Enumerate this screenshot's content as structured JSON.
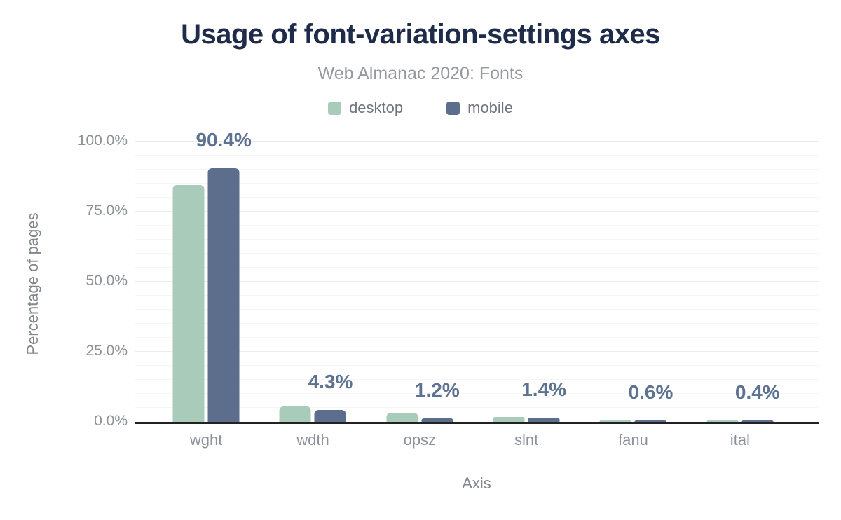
{
  "chart_data": {
    "type": "bar",
    "title": "Usage of font-variation-settings axes",
    "subtitle": "Web Almanac 2020: Fonts",
    "xlabel": "Axis",
    "ylabel": "Percentage of pages",
    "categories": [
      "wght",
      "wdth",
      "opsz",
      "slnt",
      "fanu",
      "ital"
    ],
    "series": [
      {
        "name": "desktop",
        "color": "#a9cbb9",
        "values": [
          84.5,
          5.5,
          3.3,
          1.7,
          0.4,
          0.6
        ]
      },
      {
        "name": "mobile",
        "color": "#5d6e8c",
        "values": [
          90.4,
          4.3,
          1.2,
          1.4,
          0.6,
          0.4
        ]
      }
    ],
    "data_labels": {
      "series": "mobile",
      "texts": [
        "90.4%",
        "4.3%",
        "1.2%",
        "1.4%",
        "0.6%",
        "0.4%"
      ]
    },
    "ylim": [
      0,
      100
    ],
    "yticks": [
      {
        "value": 0,
        "label": "0.0%"
      },
      {
        "value": 25,
        "label": "25.0%"
      },
      {
        "value": 50,
        "label": "50.0%"
      },
      {
        "value": 75,
        "label": "75.0%"
      },
      {
        "value": 100,
        "label": "100.0%"
      }
    ],
    "grid": {
      "major_step": 25,
      "minor_step": 5,
      "shown": true
    },
    "legend_position": "top"
  },
  "colors": {
    "title": "#1e2b49",
    "subtitle": "#95999f",
    "legend_text": "#6f7581",
    "y_tick": "#8b9095",
    "x_tick": "#8c929b",
    "axis_title": "#83878d",
    "data_label": "#5d7191",
    "axis_line": "#222222",
    "grid_major": "#ececee",
    "grid_minor": "#f6f6f7",
    "desktop": "#a9cbb9",
    "mobile": "#5d6e8c"
  }
}
